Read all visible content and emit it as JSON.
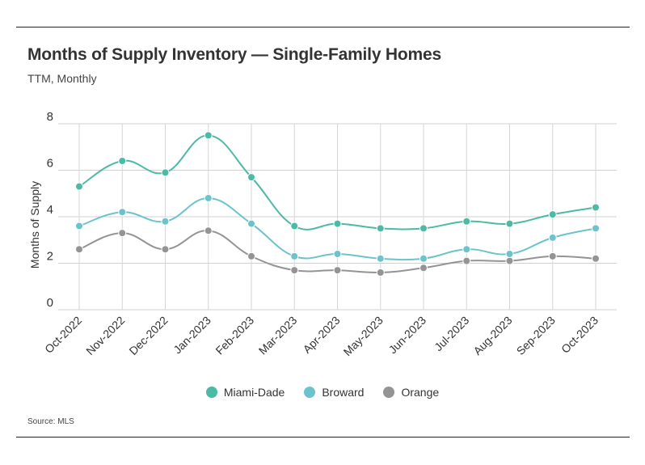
{
  "header": {
    "title": "Months of Supply Inventory — Single-Family Homes",
    "subtitle": "TTM, Monthly"
  },
  "footer": {
    "source": "Source: MLS"
  },
  "chart_data": {
    "type": "line",
    "title": "Months of Supply Inventory — Single-Family Homes",
    "subtitle": "TTM, Monthly",
    "xlabel": "",
    "ylabel": "Months of Supply",
    "ylim": [
      0,
      8
    ],
    "yticks": [
      "0",
      "2",
      "4",
      "6",
      "8"
    ],
    "grid": true,
    "legend_position": "bottom",
    "categories": [
      "Oct-2022",
      "Nov-2022",
      "Dec-2022",
      "Jan-2023",
      "Feb-2023",
      "Mar-2023",
      "Apr-2023",
      "May-2023",
      "Jun-2023",
      "Jul-2023",
      "Aug-2023",
      "Sep-2023",
      "Oct-2023"
    ],
    "series": [
      {
        "name": "Miami-Dade",
        "color": "#4dbaa6",
        "values": [
          5.3,
          6.4,
          5.9,
          7.5,
          5.7,
          3.6,
          3.7,
          3.5,
          3.5,
          3.8,
          3.7,
          4.1,
          4.4
        ]
      },
      {
        "name": "Broward",
        "color": "#6cc3cc",
        "values": [
          3.6,
          4.2,
          3.8,
          4.8,
          3.7,
          2.3,
          2.4,
          2.2,
          2.2,
          2.6,
          2.4,
          3.1,
          3.5
        ]
      },
      {
        "name": "Orange",
        "color": "#949494",
        "values": [
          2.6,
          3.3,
          2.6,
          3.4,
          2.3,
          1.7,
          1.7,
          1.6,
          1.8,
          2.1,
          2.1,
          2.3,
          2.2
        ]
      }
    ],
    "source": "Source: MLS"
  }
}
